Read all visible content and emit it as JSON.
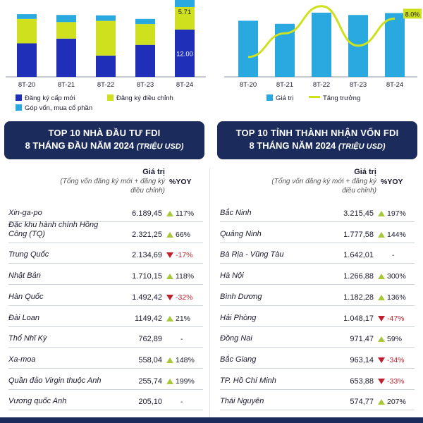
{
  "chart_data": [
    {
      "type": "bar",
      "stacked": true,
      "categories": [
        "8T-20",
        "8T-21",
        "8T-22",
        "8T-23",
        "8T-24"
      ],
      "series": [
        {
          "name": "Đăng ký cấp mới",
          "color": "#1f2fb8",
          "values": [
            8.5,
            9.7,
            5.4,
            8.1,
            12.0
          ]
        },
        {
          "name": "Đăng ký điều chỉnh",
          "color": "#cfe01e",
          "values": [
            6.2,
            4.2,
            8.8,
            5.3,
            5.71
          ]
        },
        {
          "name": "Góp vốn, mua cổ phần",
          "color": "#29a9e0",
          "values": [
            1.2,
            1.8,
            1.4,
            1.3,
            2.0
          ]
        }
      ],
      "data_labels": {
        "8T-24": [
          "12.00",
          "5.71"
        ]
      },
      "ylim": [
        0,
        22
      ],
      "legend": [
        "Đăng ký cấp mới",
        "Đăng ký điều chỉnh",
        "Góp vốn, mua cổ phần"
      ]
    },
    {
      "type": "bar",
      "categories": [
        "8T-20",
        "8T-21",
        "8T-22",
        "8T-23",
        "8T-24"
      ],
      "series": [
        {
          "name": "Giá trị",
          "color": "#29a9e0",
          "values": [
            14.6,
            13.8,
            16.7,
            16.1,
            16.6
          ]
        },
        {
          "name": "Tăng trưởng",
          "color": "#cfe01e",
          "type": "line",
          "values": [
            -9.0,
            1.5,
            13.5,
            -4.0,
            8.0
          ]
        }
      ],
      "data_labels": {
        "8T-24": "8.0%"
      },
      "ylim": [
        0,
        20
      ],
      "legend": [
        "Giá trị",
        "Tăng trưởng"
      ]
    },
    {
      "type": "table",
      "title": "TOP 10 NHÀ ĐẦU TƯ FDI",
      "subtitle": "8 THÁNG ĐẦU NĂM 2024",
      "unit": "(TRIỆU USD)",
      "columns": {
        "value": "Giá trị",
        "value_note": "(Tổng vốn đăng ký mới + đăng ký điều chỉnh)",
        "yoy": "%YOY"
      },
      "rows": [
        {
          "name": "Xin-ga-po",
          "value": "6.189,45",
          "yoy": "117%",
          "trend": "up"
        },
        {
          "name": "Đặc khu hành chính Hồng Công (TQ)",
          "value": "2.321,25",
          "yoy": "66%",
          "trend": "up"
        },
        {
          "name": "Trung Quốc",
          "value": "2.134,69",
          "yoy": "-17%",
          "trend": "down"
        },
        {
          "name": "Nhật Bản",
          "value": "1.710,15",
          "yoy": "118%",
          "trend": "up"
        },
        {
          "name": "Hàn Quốc",
          "value": "1.492,42",
          "yoy": "-32%",
          "trend": "down"
        },
        {
          "name": "Đài Loan",
          "value": "1149,42",
          "yoy": "21%",
          "trend": "up"
        },
        {
          "name": "Thổ Nhĩ Kỳ",
          "value": "762,89",
          "yoy": "-",
          "trend": "none"
        },
        {
          "name": "Xa-moa",
          "value": "558,04",
          "yoy": "148%",
          "trend": "up"
        },
        {
          "name": "Quần đảo Virgin thuộc Anh",
          "value": "255,74",
          "yoy": "199%",
          "trend": "up"
        },
        {
          "name": "Vương quốc Anh",
          "value": "205,10",
          "yoy": "-",
          "trend": "none"
        }
      ]
    },
    {
      "type": "table",
      "title": "TOP 10 TỈNH THÀNH NHẬN VỐN FDI",
      "subtitle": "8 THÁNG NĂM 2024",
      "unit": "(TRIỆU USD)",
      "columns": {
        "value": "Giá trị",
        "value_note": "(Tổng vốn đăng ký mới + đăng ký điều chỉnh)",
        "yoy": "%YOY"
      },
      "rows": [
        {
          "name": "Bắc Ninh",
          "value": "3.215,45",
          "yoy": "197%",
          "trend": "up"
        },
        {
          "name": "Quảng Ninh",
          "value": "1.777,58",
          "yoy": "144%",
          "trend": "up"
        },
        {
          "name": "Bà Rịa - Vũng Tàu",
          "value": "1.642,01",
          "yoy": "-",
          "trend": "none"
        },
        {
          "name": "Hà Nội",
          "value": "1.266,88",
          "yoy": "300%",
          "trend": "up"
        },
        {
          "name": "Bình Dương",
          "value": "1.182,28",
          "yoy": "136%",
          "trend": "up"
        },
        {
          "name": "Hải Phòng",
          "value": "1.048,17",
          "yoy": "-47%",
          "trend": "down"
        },
        {
          "name": "Đồng Nai",
          "value": "971,47",
          "yoy": "59%",
          "trend": "up"
        },
        {
          "name": "Bắc Giang",
          "value": "963,14",
          "yoy": "-34%",
          "trend": "down"
        },
        {
          "name": "TP. Hồ Chí Minh",
          "value": "653,88",
          "yoy": "-33%",
          "trend": "down"
        },
        {
          "name": "Thái Nguyên",
          "value": "574,77",
          "yoy": "207%",
          "trend": "up"
        }
      ]
    }
  ],
  "colors": {
    "navy": "#1b2b5c",
    "up": "#a8c83a",
    "down": "#c0202e"
  }
}
